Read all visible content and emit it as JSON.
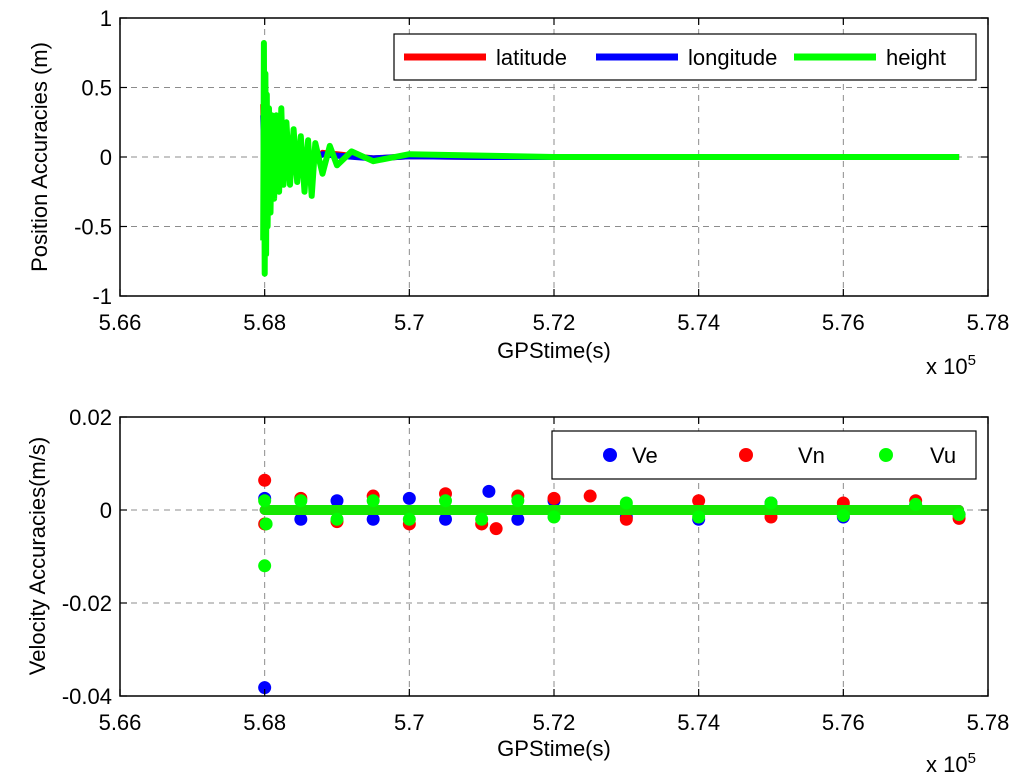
{
  "figure": {
    "background": "#ffffff",
    "grid_color": "#8c8c8c",
    "x_exponent_base": "x 10",
    "x_exponent_power": "5"
  },
  "chart_data": [
    {
      "type": "line",
      "title": "",
      "xlabel": "GPStime(s)",
      "ylabel": "Position Accuracies (m)",
      "xlim": [
        5.66,
        5.78
      ],
      "ylim": [
        -1,
        1
      ],
      "xticks": [
        5.66,
        5.68,
        5.7,
        5.72,
        5.74,
        5.76,
        5.78
      ],
      "yticks": [
        1,
        0.5,
        0,
        -0.5,
        -1
      ],
      "xtick_labels": [
        "5.66",
        "5.68",
        "5.7",
        "5.72",
        "5.74",
        "5.76",
        "5.78"
      ],
      "ytick_labels": [
        "1",
        "0.5",
        "0",
        "-0.5",
        "-1"
      ],
      "x_multiplier": "x 10^5",
      "grid": true,
      "legend": {
        "placement": "top-right",
        "orientation": "horizontal",
        "entries": [
          "latitude",
          "longitude",
          "height"
        ]
      },
      "series": [
        {
          "name": "latitude",
          "color": "#ff0000",
          "x": [
            5.6798,
            5.68,
            5.6802,
            5.6804,
            5.6806,
            5.6808,
            5.681,
            5.6815,
            5.682,
            5.6825,
            5.683,
            5.684,
            5.685,
            5.6865,
            5.688,
            5.69,
            5.695,
            5.7,
            5.71,
            5.72,
            5.73,
            5.74,
            5.75,
            5.76,
            5.77,
            5.776
          ],
          "y": [
            0.38,
            -0.3,
            0.25,
            -0.2,
            0.2,
            -0.15,
            0.12,
            -0.1,
            0.1,
            -0.08,
            0.08,
            -0.06,
            0.05,
            -0.04,
            0.03,
            0.02,
            -0.01,
            0.005,
            0.0,
            0.0,
            0.0,
            0.0,
            0.0,
            0.0,
            0.0,
            0.0
          ]
        },
        {
          "name": "longitude",
          "color": "#0000ff",
          "x": [
            5.6798,
            5.68,
            5.6802,
            5.6804,
            5.6806,
            5.6808,
            5.681,
            5.6815,
            5.682,
            5.6825,
            5.683,
            5.684,
            5.685,
            5.6865,
            5.688,
            5.69,
            5.695,
            5.7,
            5.71,
            5.72,
            5.73,
            5.74,
            5.75,
            5.76,
            5.77,
            5.776
          ],
          "y": [
            0.3,
            -0.25,
            0.24,
            -0.2,
            0.18,
            -0.12,
            0.12,
            -0.08,
            0.08,
            -0.06,
            0.06,
            -0.05,
            0.04,
            -0.03,
            0.02,
            0.01,
            -0.01,
            0.005,
            0.0,
            0.0,
            0.0,
            0.0,
            0.0,
            0.0,
            0.0,
            0.0
          ]
        },
        {
          "name": "height",
          "color": "#00ff00",
          "x": [
            5.6798,
            5.6799,
            5.68,
            5.6801,
            5.6802,
            5.6803,
            5.6804,
            5.6806,
            5.6808,
            5.681,
            5.6813,
            5.6816,
            5.682,
            5.6823,
            5.6826,
            5.683,
            5.6835,
            5.684,
            5.6845,
            5.685,
            5.6855,
            5.686,
            5.6865,
            5.687,
            5.688,
            5.689,
            5.69,
            5.692,
            5.695,
            5.7,
            5.71,
            5.72,
            5.73,
            5.74,
            5.75,
            5.76,
            5.77,
            5.776
          ],
          "y": [
            -0.6,
            0.82,
            -0.84,
            0.6,
            -0.7,
            0.45,
            -0.5,
            0.35,
            -0.4,
            0.3,
            -0.3,
            0.3,
            -0.25,
            0.35,
            -0.2,
            0.25,
            -0.2,
            0.2,
            -0.18,
            0.15,
            -0.25,
            0.12,
            -0.28,
            0.1,
            -0.12,
            0.08,
            -0.06,
            0.04,
            -0.03,
            0.02,
            0.01,
            0.0,
            0.0,
            0.0,
            0.0,
            0.0,
            0.0,
            0.0
          ]
        }
      ]
    },
    {
      "type": "scatter",
      "title": "",
      "xlabel": "GPStime(s)",
      "ylabel": "Velocity Accuracies(m/s)",
      "xlim": [
        5.66,
        5.78
      ],
      "ylim": [
        -0.04,
        0.02
      ],
      "xticks": [
        5.66,
        5.68,
        5.7,
        5.72,
        5.74,
        5.76,
        5.78
      ],
      "yticks": [
        0.02,
        0,
        -0.02,
        -0.04
      ],
      "xtick_labels": [
        "5.66",
        "5.68",
        "5.7",
        "5.72",
        "5.74",
        "5.76",
        "5.78"
      ],
      "ytick_labels": [
        "0.02",
        "0",
        "-0.02",
        "-0.04"
      ],
      "x_multiplier": "x 10^5",
      "grid": true,
      "legend": {
        "placement": "top-right",
        "orientation": "horizontal",
        "entries": [
          "Ve",
          "Vn",
          "Vu"
        ]
      },
      "series": [
        {
          "name": "Ve",
          "color": "#0000ff",
          "x": [
            5.68,
            5.68,
            5.685,
            5.69,
            5.695,
            5.7,
            5.705,
            5.711,
            5.715,
            5.72,
            5.73,
            5.74,
            5.75,
            5.76,
            5.77,
            5.776
          ],
          "y": [
            -0.0382,
            0.0025,
            -0.002,
            0.002,
            -0.002,
            0.0025,
            -0.002,
            0.004,
            -0.002,
            0.002,
            -0.0015,
            -0.002,
            0.0015,
            -0.0015,
            0.001,
            -0.001
          ]
        },
        {
          "name": "Vn",
          "color": "#ff0000",
          "x": [
            5.68,
            5.68,
            5.685,
            5.69,
            5.695,
            5.7,
            5.705,
            5.71,
            5.712,
            5.715,
            5.72,
            5.725,
            5.73,
            5.74,
            5.75,
            5.76,
            5.77,
            5.776
          ],
          "y": [
            0.0064,
            -0.003,
            0.0025,
            -0.0025,
            0.003,
            -0.003,
            0.0035,
            -0.003,
            -0.004,
            0.003,
            0.0025,
            0.003,
            -0.002,
            0.002,
            -0.0015,
            0.0015,
            0.002,
            -0.0018
          ]
        },
        {
          "name": "Vu",
          "color": "#00ff00",
          "x": [
            5.68,
            5.68,
            5.6802,
            5.685,
            5.69,
            5.695,
            5.7,
            5.705,
            5.71,
            5.715,
            5.72,
            5.73,
            5.74,
            5.75,
            5.76,
            5.77,
            5.776
          ],
          "y": [
            -0.012,
            0.002,
            -0.003,
            0.002,
            -0.002,
            0.002,
            -0.002,
            0.002,
            -0.002,
            0.002,
            -0.0015,
            0.0015,
            -0.0015,
            0.0015,
            -0.0012,
            0.0012,
            -0.001
          ]
        }
      ]
    }
  ]
}
